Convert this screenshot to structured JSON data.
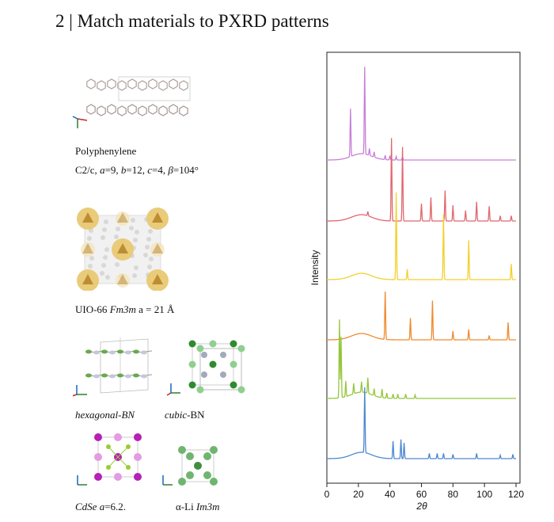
{
  "title": "2 | Match materials to PXRD patterns",
  "materials": {
    "polyphenylene": {
      "name": "Polyphenylene",
      "cell_prefix": "C2/c, ",
      "cell_a": "a",
      "cell_a_val": "=9, ",
      "cell_b": "b",
      "cell_b_val": "=12, ",
      "cell_c": "c",
      "cell_c_val": "=4, ",
      "cell_beta": "β",
      "cell_beta_val": "=104°"
    },
    "uio66": {
      "name": "UIO-66 ",
      "group": "Fm3m",
      "cell": " a = 21 Å"
    },
    "hbn": {
      "name": "hexagonal-BN"
    },
    "cbn": {
      "prefix": "cubic",
      "suffix": "-BN"
    },
    "cdse": {
      "name": "CdSe ",
      "cell_a": "a",
      "cell_val": "=6.2."
    },
    "li": {
      "prefix": "α-Li ",
      "group": "Im3m"
    }
  },
  "chart_data": {
    "type": "line",
    "xlabel": "2θ",
    "ylabel": "Intensity",
    "xlim": [
      0,
      120
    ],
    "xticks": [
      0,
      20,
      40,
      60,
      80,
      100,
      120
    ],
    "series": [
      {
        "color": "#c77fd6",
        "peaks": [
          [
            15,
            0.55
          ],
          [
            24,
            1.0
          ],
          [
            27,
            0.08
          ],
          [
            30,
            0.06
          ],
          [
            37,
            0.05
          ],
          [
            40,
            0.05
          ],
          [
            44,
            0.04
          ],
          [
            48,
            0.04
          ]
        ]
      },
      {
        "color": "#e0676e",
        "peaks": [
          [
            26,
            0.05
          ],
          [
            41,
            0.95
          ],
          [
            48,
            0.85
          ],
          [
            60,
            0.2
          ],
          [
            66,
            0.27
          ],
          [
            75,
            0.35
          ],
          [
            80,
            0.18
          ],
          [
            88,
            0.12
          ],
          [
            95,
            0.22
          ],
          [
            103,
            0.17
          ],
          [
            110,
            0.06
          ],
          [
            117,
            0.06
          ]
        ]
      },
      {
        "color": "#f2d02b",
        "peaks": [
          [
            44,
            1.0
          ],
          [
            51,
            0.12
          ],
          [
            74,
            0.75
          ],
          [
            90,
            0.45
          ],
          [
            117,
            0.18
          ]
        ]
      },
      {
        "color": "#ef8a2e",
        "peaks": [
          [
            37,
            0.55
          ],
          [
            53,
            0.25
          ],
          [
            67,
            0.45
          ],
          [
            80,
            0.1
          ],
          [
            90,
            0.12
          ],
          [
            103,
            0.05
          ],
          [
            115,
            0.2
          ]
        ]
      },
      {
        "color": "#95c63c",
        "peaks": [
          [
            8,
            0.9
          ],
          [
            9,
            0.7
          ],
          [
            12,
            0.18
          ],
          [
            17,
            0.12
          ],
          [
            22,
            0.12
          ],
          [
            26,
            0.18
          ],
          [
            30,
            0.08
          ],
          [
            35,
            0.1
          ],
          [
            38,
            0.06
          ],
          [
            42,
            0.05
          ],
          [
            45,
            0.05
          ],
          [
            50,
            0.05
          ],
          [
            56,
            0.04
          ]
        ]
      },
      {
        "color": "#4d88d0",
        "peaks": [
          [
            24,
            0.75
          ],
          [
            42,
            0.2
          ],
          [
            47,
            0.22
          ],
          [
            49,
            0.18
          ],
          [
            65,
            0.06
          ],
          [
            70,
            0.06
          ],
          [
            74,
            0.06
          ],
          [
            80,
            0.05
          ],
          [
            95,
            0.06
          ],
          [
            110,
            0.04
          ],
          [
            118,
            0.05
          ]
        ]
      }
    ]
  }
}
